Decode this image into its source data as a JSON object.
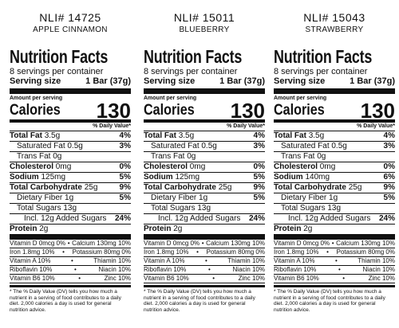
{
  "panels": [
    {
      "nli": "NLI# 14725",
      "flavor": "APPLE CINNAMON",
      "title": "Nutrition Facts",
      "servings": "8 servings per container",
      "serving_size_label": "Serving size",
      "serving_size_value": "1 Bar (37g)",
      "amount_per_serving": "Amount per serving",
      "calories_label": "Calories",
      "calories_value": "130",
      "dv_header": "% Daily Value*",
      "rows": [
        {
          "bold": "Total Fat",
          "amt": "3.5g",
          "pct": "4%"
        },
        {
          "bold": "",
          "amt": "Saturated Fat 0.5g",
          "pct": "3%"
        },
        {
          "bold": "",
          "amt": "Trans Fat 0g",
          "pct": ""
        },
        {
          "bold": "Cholesterol",
          "amt": "0mg",
          "pct": "0%"
        },
        {
          "bold": "Sodium",
          "amt": "125mg",
          "pct": "5%"
        },
        {
          "bold": "Total Carbohydrate",
          "amt": "25g",
          "pct": "9%"
        },
        {
          "bold": "",
          "amt": "Dietary Fiber 1g",
          "pct": "5%"
        },
        {
          "bold": "",
          "amt": "Total Sugars 13g",
          "pct": ""
        },
        {
          "bold": "",
          "amt": "Incl. 12g Added Sugars",
          "pct": "24%"
        }
      ],
      "protein_label": "Protein",
      "protein_value": "2g",
      "vitamins": [
        {
          "left": "Vitamin D 0mcg 0%",
          "right": "Calcium 130mg 10%"
        },
        {
          "left": "Iron 1.8mg 10%",
          "right": "Potassium 80mg 0%"
        },
        {
          "left": "Vitamin A 10%",
          "right": "Thiamin 10%"
        },
        {
          "left": "Riboflavin 10%",
          "right": "Niacin 10%"
        },
        {
          "left": "Vitamin B6 10%",
          "right": "Zinc 10%"
        }
      ],
      "footnote": "* The % Daily Value (DV) tells you how much a nutrient in a serving of food contributes to a daily diet. 2,000 calories a day is used for general nutrition advice."
    },
    {
      "nli": "NLI# 15011",
      "flavor": "BLUEBERRY",
      "title": "Nutrition Facts",
      "servings": "8 servings per container",
      "serving_size_label": "Serving size",
      "serving_size_value": "1 Bar (37g)",
      "amount_per_serving": "Amount per serving",
      "calories_label": "Calories",
      "calories_value": "130",
      "dv_header": "% Daily Value*",
      "rows": [
        {
          "bold": "Total Fat",
          "amt": "3.5g",
          "pct": "4%"
        },
        {
          "bold": "",
          "amt": "Saturated Fat 0.5g",
          "pct": "3%"
        },
        {
          "bold": "",
          "amt": "Trans Fat 0g",
          "pct": ""
        },
        {
          "bold": "Cholesterol",
          "amt": "0mg",
          "pct": "0%"
        },
        {
          "bold": "Sodium",
          "amt": "125mg",
          "pct": "5%"
        },
        {
          "bold": "Total Carbohydrate",
          "amt": "25g",
          "pct": "9%"
        },
        {
          "bold": "",
          "amt": "Dietary Fiber 1g",
          "pct": "5%"
        },
        {
          "bold": "",
          "amt": "Total Sugars 13g",
          "pct": ""
        },
        {
          "bold": "",
          "amt": "Incl. 12g Added Sugars",
          "pct": "24%"
        }
      ],
      "protein_label": "Protein",
      "protein_value": "2g",
      "vitamins": [
        {
          "left": "Vitamin D 0mcg 0%",
          "right": "Calcium 130mg 10%"
        },
        {
          "left": "Iron 1.8mg 10%",
          "right": "Potassium 80mg 0%"
        },
        {
          "left": "Vitamin A 10%",
          "right": "Thiamin 10%"
        },
        {
          "left": "Riboflavin 10%",
          "right": "Niacin 10%"
        },
        {
          "left": "Vitamin B6 10%",
          "right": "Zinc 10%"
        }
      ],
      "footnote": "* The % Daily Value (DV) tells you how much a nutrient in a serving of food contributes to a daily diet. 2,000 calories a day is used for general nutrition advice."
    },
    {
      "nli": "NLI# 15043",
      "flavor": "STRAWBERRY",
      "title": "Nutrition Facts",
      "servings": "8 servings per container",
      "serving_size_label": "Serving size",
      "serving_size_value": "1 Bar (37g)",
      "amount_per_serving": "Amount per serving",
      "calories_label": "Calories",
      "calories_value": "130",
      "dv_header": "% Daily Value*",
      "rows": [
        {
          "bold": "Total Fat",
          "amt": "3.5g",
          "pct": "4%"
        },
        {
          "bold": "",
          "amt": "Saturated Fat 0.5g",
          "pct": "3%"
        },
        {
          "bold": "",
          "amt": "Trans Fat 0g",
          "pct": ""
        },
        {
          "bold": "Cholesterol",
          "amt": "0mg",
          "pct": "0%"
        },
        {
          "bold": "Sodium",
          "amt": "140mg",
          "pct": "6%"
        },
        {
          "bold": "Total Carbohydrate",
          "amt": "25g",
          "pct": "9%"
        },
        {
          "bold": "",
          "amt": "Dietary Fiber 1g",
          "pct": "5%"
        },
        {
          "bold": "",
          "amt": "Total Sugars 13g",
          "pct": ""
        },
        {
          "bold": "",
          "amt": "Incl. 12g Added Sugars",
          "pct": "24%"
        }
      ],
      "protein_label": "Protein",
      "protein_value": "2g",
      "vitamins": [
        {
          "left": "Vitamin D 0mcg 0%",
          "right": "Calcium 130mg 10%"
        },
        {
          "left": "Iron 1.8mg 10%",
          "right": "Potassium 80mg 0%"
        },
        {
          "left": "Vitamin A 10%",
          "right": "Thiamin 10%"
        },
        {
          "left": "Riboflavin 10%",
          "right": "Niacin 10%"
        },
        {
          "left": "Vitamin B6 10%",
          "right": "Zinc 10%"
        }
      ],
      "footnote": "* The % Daily Value (DV) tells you how much a nutrient in a serving of food contributes to a daily diet. 2,000 calories a day is used for general nutrition advice."
    }
  ]
}
